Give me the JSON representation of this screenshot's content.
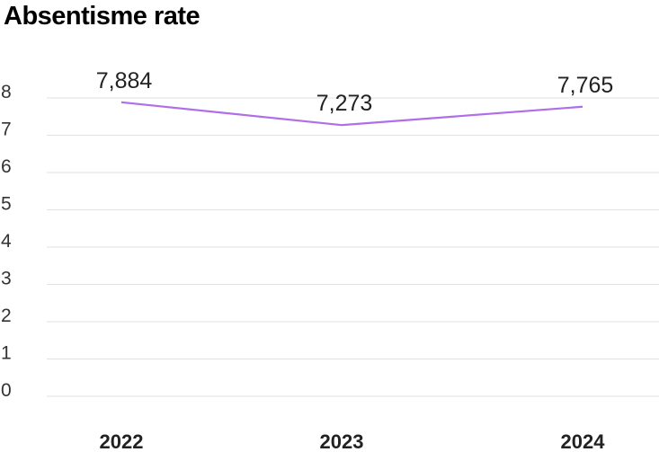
{
  "chart_data": {
    "type": "line",
    "title": "Absentisme rate",
    "categories": [
      "2022",
      "2023",
      "2024"
    ],
    "series": [
      {
        "values": [
          7.884,
          7.273,
          7.765
        ],
        "labels": [
          "7,884",
          "7,273",
          "7,765"
        ]
      }
    ],
    "ylim": [
      0,
      8
    ],
    "yticks": [
      "0",
      "1",
      "2",
      "3",
      "4",
      "5",
      "6",
      "7",
      "8"
    ],
    "grid": true,
    "line_color": "#b06ee8",
    "grid_color": "#e2e2e2"
  }
}
